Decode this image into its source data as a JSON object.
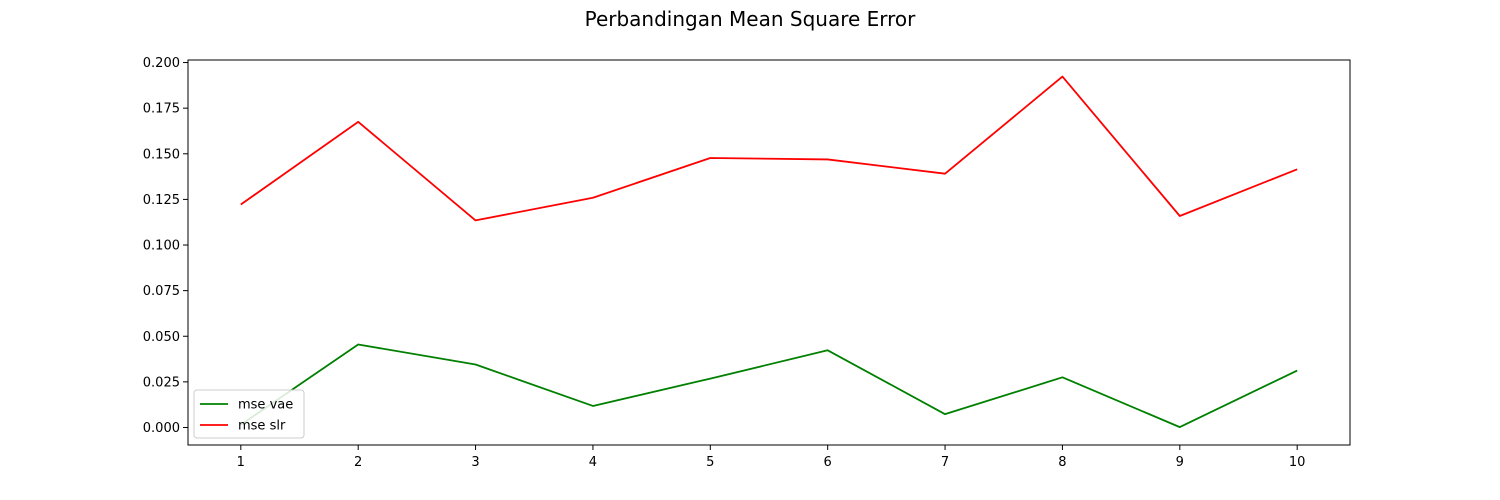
{
  "chart_data": {
    "type": "line",
    "title": "Perbandingan Mean Square Error",
    "xlabel": "",
    "ylabel": "",
    "x": [
      1,
      2,
      3,
      4,
      5,
      6,
      7,
      8,
      9,
      10
    ],
    "xticks": [
      "1",
      "2",
      "3",
      "4",
      "5",
      "6",
      "7",
      "8",
      "9",
      "10"
    ],
    "yticks": [
      "0.000",
      "0.025",
      "0.050",
      "0.075",
      "0.100",
      "0.125",
      "0.150",
      "0.175",
      "0.200"
    ],
    "xlim": [
      0.55,
      10.45
    ],
    "ylim": [
      -0.0096,
      0.2014
    ],
    "grid": false,
    "legend_position": "lower-left",
    "series": [
      {
        "name": "mse vae",
        "color": "#008000",
        "values": [
          0.0015,
          0.0455,
          0.0345,
          0.0118,
          0.0268,
          0.0423,
          0.0073,
          0.0275,
          0.0002,
          0.0312
        ]
      },
      {
        "name": "mse slr",
        "color": "#ff0000",
        "values": [
          0.1222,
          0.1675,
          0.1135,
          0.1259,
          0.1477,
          0.1469,
          0.1391,
          0.1923,
          0.1159,
          0.1415
        ]
      }
    ]
  }
}
